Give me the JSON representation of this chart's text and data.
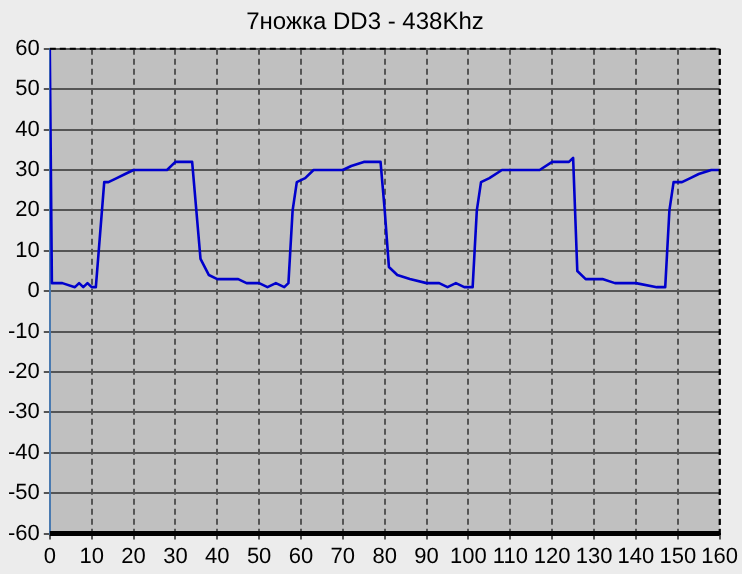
{
  "chart_data": {
    "type": "line",
    "title": "7ножка DD3 - 438Khz",
    "series": [
      {
        "color": "#0000cc",
        "x": [
          0,
          0.5,
          3,
          6,
          7,
          8,
          9,
          10,
          11,
          12,
          13,
          14,
          16,
          18,
          20,
          24,
          28,
          30,
          34,
          35,
          36,
          38,
          40,
          45,
          47,
          50,
          52,
          54,
          56,
          57,
          58,
          59,
          61,
          63,
          66,
          70,
          72,
          75,
          79,
          80,
          81,
          83,
          86,
          90,
          93,
          95,
          97,
          99,
          101,
          102,
          103,
          105,
          108,
          112,
          117,
          120,
          124,
          125,
          126,
          128,
          132,
          135,
          140,
          145,
          147,
          148,
          149,
          151,
          153,
          155,
          158,
          160
        ],
        "values": [
          60,
          2,
          2,
          1,
          2,
          1,
          2,
          1,
          1,
          14,
          27,
          27,
          28,
          29,
          30,
          30,
          30,
          32,
          32,
          20,
          8,
          4,
          3,
          3,
          2,
          2,
          1,
          2,
          1,
          2,
          20,
          27,
          28,
          30,
          30,
          30,
          31,
          32,
          32,
          20,
          6,
          4,
          3,
          2,
          2,
          1,
          2,
          1,
          1,
          20,
          27,
          28,
          30,
          30,
          30,
          32,
          32,
          33,
          5,
          3,
          3,
          2,
          2,
          1,
          1,
          20,
          27,
          27,
          28,
          29,
          30,
          30
        ]
      }
    ],
    "xlim": [
      0,
      160
    ],
    "xticks": [
      0,
      10,
      20,
      30,
      40,
      50,
      60,
      70,
      80,
      90,
      100,
      110,
      120,
      130,
      140,
      150,
      160
    ],
    "ylim": [
      -60,
      60
    ],
    "yticks": [
      -60,
      -50,
      -40,
      -30,
      -20,
      -10,
      0,
      10,
      20,
      30,
      40,
      50,
      60
    ],
    "grid": true,
    "legend": false,
    "marker": "none",
    "line_style": "solid"
  }
}
